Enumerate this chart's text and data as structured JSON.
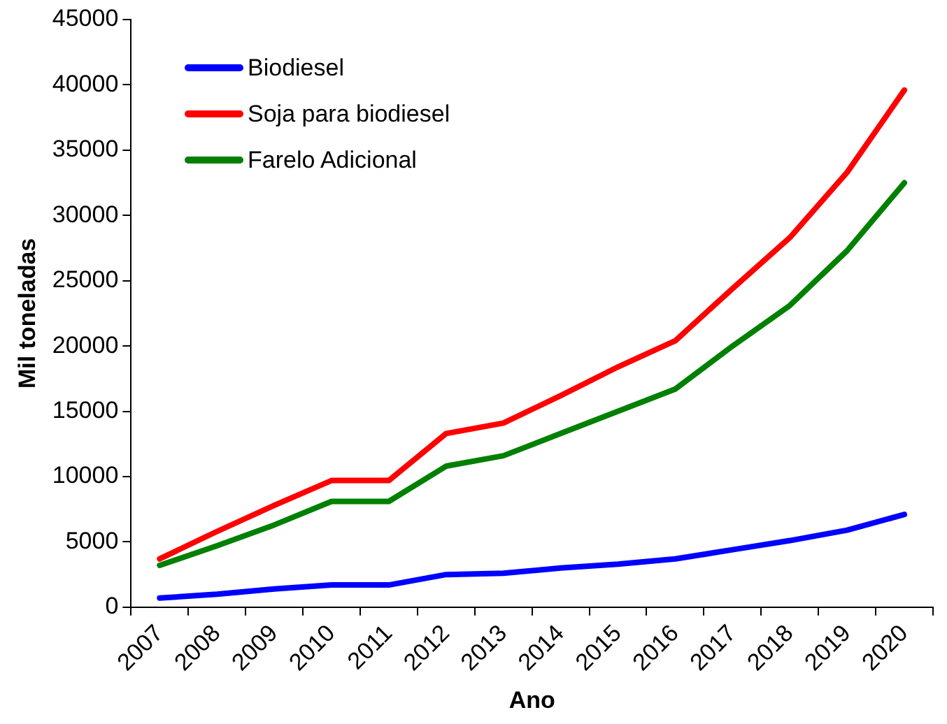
{
  "chart_data": {
    "type": "line",
    "xlabel": "Ano",
    "ylabel": "Mil toneladas",
    "categories": [
      "2007",
      "2008",
      "2009",
      "2010",
      "2011",
      "2012",
      "2013",
      "2014",
      "2015",
      "2016",
      "2017",
      "2018",
      "2019",
      "2020"
    ],
    "series": [
      {
        "name": "Biodiesel",
        "color": "#0000ff",
        "values": [
          700,
          1000,
          1400,
          1700,
          1700,
          2500,
          2600,
          3000,
          3300,
          3700,
          4400,
          5100,
          5900,
          7100
        ]
      },
      {
        "name": "Soja para biodiesel",
        "color": "#ff0000",
        "values": [
          3700,
          5800,
          7800,
          9700,
          9700,
          13300,
          14100,
          16200,
          18400,
          20400,
          24400,
          28300,
          33300,
          39600
        ]
      },
      {
        "name": "Farelo Adicional",
        "color": "#008000",
        "values": [
          3200,
          4700,
          6300,
          8100,
          8100,
          10800,
          11600,
          13300,
          15000,
          16700,
          20000,
          23100,
          27300,
          32500
        ]
      }
    ],
    "ylim": [
      0,
      45000
    ],
    "yticks": [
      0,
      5000,
      10000,
      15000,
      20000,
      25000,
      30000,
      35000,
      40000,
      45000
    ],
    "grid": false,
    "legend": "top left",
    "marker": "none",
    "line_style": "solid"
  }
}
